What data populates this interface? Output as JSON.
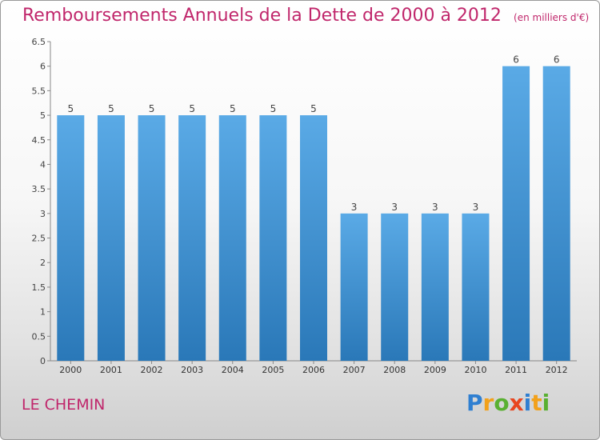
{
  "title": "Remboursements Annuels de la Dette de 2000 à 2012",
  "unit_note": "(en milliers d'€)",
  "commune": "LE CHEMIN",
  "logo": {
    "letters": [
      {
        "char": "P",
        "color": "#2f7fd1"
      },
      {
        "char": "r",
        "color": "#f2a11b"
      },
      {
        "char": "o",
        "color": "#59b031"
      },
      {
        "char": "x",
        "color": "#e8461f"
      },
      {
        "char": "i",
        "color": "#2f7fd1"
      },
      {
        "char": "t",
        "color": "#f2a11b"
      },
      {
        "char": "i",
        "color": "#59b031"
      }
    ]
  },
  "colors": {
    "title": "#c0266b",
    "bar_top": "#5aaae6",
    "bar_bottom": "#2a78b8"
  },
  "chart_data": {
    "type": "bar",
    "categories": [
      "2000",
      "2001",
      "2002",
      "2003",
      "2004",
      "2005",
      "2006",
      "2007",
      "2008",
      "2009",
      "2010",
      "2011",
      "2012"
    ],
    "values": [
      5,
      5,
      5,
      5,
      5,
      5,
      5,
      3,
      3,
      3,
      3,
      6,
      6
    ],
    "value_labels": [
      "5",
      "5",
      "5",
      "5",
      "5",
      "5",
      "5",
      "3",
      "3",
      "3",
      "3",
      "6",
      "6"
    ],
    "yticks": [
      {
        "value": 0,
        "label": "0"
      },
      {
        "value": 0.5,
        "label": "0.5"
      },
      {
        "value": 1,
        "label": "1"
      },
      {
        "value": 1.5,
        "label": "1.5"
      },
      {
        "value": 2,
        "label": "2"
      },
      {
        "value": 2.5,
        "label": "2.5"
      },
      {
        "value": 3,
        "label": "3"
      },
      {
        "value": 3.5,
        "label": "3.5"
      },
      {
        "value": 4,
        "label": "4"
      },
      {
        "value": 4.5,
        "label": "4.5"
      },
      {
        "value": 5,
        "label": "5"
      },
      {
        "value": 5.5,
        "label": "5.5"
      },
      {
        "value": 6,
        "label": "6"
      },
      {
        "value": 6.5,
        "label": "6.5"
      }
    ],
    "ylim": [
      0,
      6.5
    ],
    "grid": false,
    "legend": "none"
  }
}
